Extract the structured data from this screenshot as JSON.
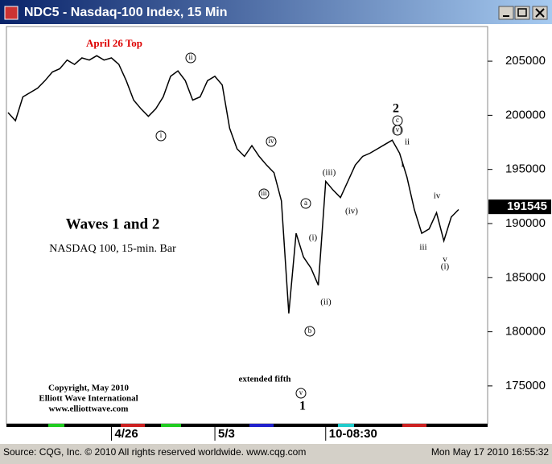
{
  "window": {
    "title": "NDC5 - Nasdaq-100 Index, 15 Min"
  },
  "status_bar": {
    "source": "Source: CQG, Inc. © 2010 All rights reserved worldwide. www.cqg.com",
    "datetime": "Mon May 17 2010 16:55:32"
  },
  "chart_data": {
    "type": "line",
    "title": "Waves 1 and 2",
    "subtitle": "NASDAQ 100, 15-min. Bar",
    "categories": [
      null,
      null,
      null,
      null,
      null,
      null,
      null,
      null,
      null,
      null,
      null,
      null,
      null,
      null,
      "4/26",
      null,
      null,
      null,
      null,
      null,
      null,
      null,
      null,
      null,
      null,
      null,
      null,
      null,
      "5/3",
      null,
      null,
      null,
      null,
      null,
      null,
      null,
      null,
      null,
      null,
      null,
      null,
      null,
      null,
      "10-08:30",
      null,
      null,
      null,
      null,
      null,
      null,
      null,
      null,
      null,
      null,
      null,
      null,
      null,
      null,
      null,
      null,
      null,
      null
    ],
    "values": [
      200250,
      199500,
      201700,
      202100,
      202500,
      203200,
      204000,
      204300,
      205100,
      204700,
      205300,
      205100,
      205500,
      205100,
      205300,
      204700,
      203200,
      201400,
      200600,
      199900,
      200600,
      201700,
      203600,
      204100,
      203200,
      201400,
      201700,
      203200,
      203600,
      202800,
      198800,
      196900,
      196200,
      197200,
      196200,
      195400,
      194700,
      192100,
      181700,
      189100,
      186900,
      185900,
      184300,
      193900,
      193100,
      192400,
      193900,
      195400,
      196200,
      196500,
      196900,
      197300,
      197700,
      196500,
      194300,
      191300,
      189100,
      189500,
      191000,
      188400,
      190600,
      191300
    ],
    "color": "#000000",
    "ylim": [
      171500,
      208200
    ],
    "yticks": [
      175000,
      180000,
      185000,
      190000,
      195000,
      200000,
      205000
    ],
    "last_value": 191545,
    "annotations": [
      "April 26 Top",
      "ii",
      "i",
      "iii",
      "iv",
      "a",
      "b",
      "v",
      "1",
      "extended fifth",
      "(i)",
      "(ii)",
      "(iii)",
      "(iv)",
      "(v)",
      "c",
      "2",
      "ii",
      "i",
      "iii",
      "iv",
      "v",
      "(i)"
    ],
    "copyright": [
      "Copyright, May 2010",
      "Elliott Wave International",
      "www.elliottwave.com"
    ]
  }
}
